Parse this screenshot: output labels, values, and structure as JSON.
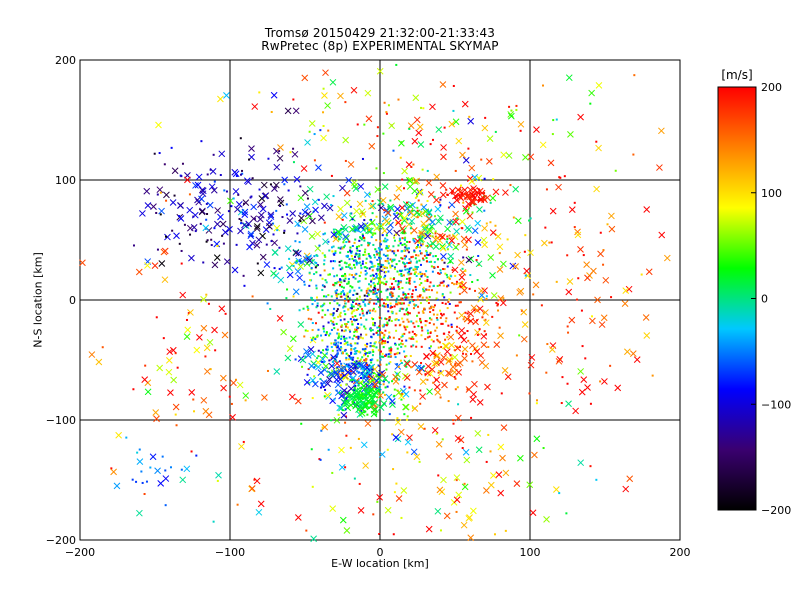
{
  "chart_data": {
    "type": "scatter",
    "title": "Tromsø 20150429 21:32:00-21:33:43",
    "subtitle": "RwPretec (8p) EXPERIMENTAL SKYMAP",
    "xlabel": "E-W location [km]",
    "ylabel": "N-S location [km]",
    "xlim": [
      -200,
      200
    ],
    "ylim": [
      -200,
      200
    ],
    "xticks": [
      -200,
      -100,
      0,
      100,
      200
    ],
    "yticks": [
      -200,
      -100,
      0,
      100,
      200
    ],
    "grid_lines_x": [
      -100,
      0,
      100
    ],
    "grid_lines_y": [
      -100,
      0,
      100
    ],
    "markers": {
      "small": "dot (inner region)",
      "large": "x (outer region)"
    },
    "colorbar": {
      "label": "[m/s]",
      "range": [
        -200,
        200
      ],
      "ticks": [
        -200,
        -100,
        0,
        100,
        200
      ],
      "colormap": [
        "#000000",
        "#3a0070",
        "#0000ff",
        "#00c8ff",
        "#00ff00",
        "#ffff00",
        "#ff8000",
        "#ff0000"
      ]
    },
    "clusters": [
      {
        "name": "central-north",
        "x": -5,
        "y": 30,
        "sx": 28,
        "sy": 25,
        "n": 700,
        "v": -10,
        "vs": 60
      },
      {
        "name": "central-south",
        "x": -12,
        "y": -35,
        "sx": 22,
        "sy": 30,
        "n": 550,
        "v": 40,
        "vs": 80
      },
      {
        "name": "south-blue",
        "x": -20,
        "y": -55,
        "sx": 12,
        "sy": 15,
        "n": 180,
        "v": -70,
        "vs": 30
      },
      {
        "name": "south-green",
        "x": -12,
        "y": -82,
        "sx": 6,
        "sy": 6,
        "n": 110,
        "v": 20,
        "vs": 10
      },
      {
        "name": "east-red",
        "x": 35,
        "y": -20,
        "sx": 25,
        "sy": 30,
        "n": 380,
        "v": 170,
        "vs": 40
      },
      {
        "name": "northeast-mixed",
        "x": 30,
        "y": 60,
        "sx": 28,
        "sy": 30,
        "n": 300,
        "v": 80,
        "vs": 90
      },
      {
        "name": "red-band",
        "x": 60,
        "y": 88,
        "sx": 9,
        "sy": 3,
        "n": 60,
        "v": 190,
        "vs": 10
      },
      {
        "name": "northwest-blue",
        "x": -95,
        "y": 75,
        "sx": 28,
        "sy": 25,
        "n": 220,
        "v": -120,
        "vs": 40
      },
      {
        "name": "scatter-west",
        "x": -130,
        "y": -40,
        "sx": 30,
        "sy": 60,
        "n": 90,
        "v": 160,
        "vs": 60
      },
      {
        "name": "scatter-east",
        "x": 130,
        "y": 20,
        "sx": 35,
        "sy": 60,
        "n": 110,
        "v": 170,
        "vs": 50
      },
      {
        "name": "scatter-south",
        "x": 30,
        "y": -140,
        "sx": 55,
        "sy": 35,
        "n": 140,
        "v": 120,
        "vs": 90
      },
      {
        "name": "scatter-north",
        "x": 20,
        "y": 150,
        "sx": 60,
        "sy": 25,
        "n": 120,
        "v": 110,
        "vs": 90
      },
      {
        "name": "southwest-cyan",
        "x": -150,
        "y": -145,
        "sx": 15,
        "sy": 12,
        "n": 25,
        "v": -55,
        "vs": 20
      }
    ]
  }
}
